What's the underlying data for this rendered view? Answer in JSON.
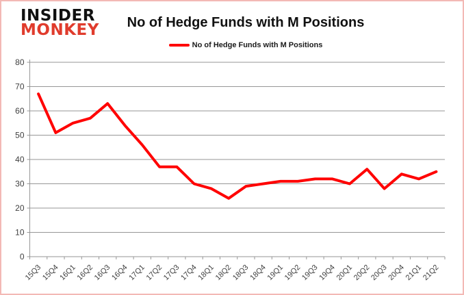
{
  "logo": {
    "top": "INSIDER",
    "bottom": "MONKEY"
  },
  "header": {
    "title": "No of Hedge Funds with M Positions"
  },
  "legend": {
    "label": "No of Hedge Funds with M Positions"
  },
  "colors": {
    "series": "#FF0000",
    "logo_black": "#111111",
    "logo_red": "#E03C2D",
    "grid": "#969696",
    "tick_text": "#3F3F3F",
    "border": "#F3B9B5"
  },
  "chart_data": {
    "type": "line",
    "title": "No of Hedge Funds with M Positions",
    "categories": [
      "15Q3",
      "15Q4",
      "16Q1",
      "16Q2",
      "16Q3",
      "16Q4",
      "17Q1",
      "17Q2",
      "17Q3",
      "17Q4",
      "18Q1",
      "18Q2",
      "18Q3",
      "18Q4",
      "19Q1",
      "19Q2",
      "19Q3",
      "19Q4",
      "20Q1",
      "20Q2",
      "20Q3",
      "20Q4",
      "21Q1",
      "21Q2"
    ],
    "series": [
      {
        "name": "No of Hedge Funds with M Positions",
        "color": "#FF0000",
        "values": [
          67,
          51,
          55,
          57,
          63,
          54,
          46,
          37,
          37,
          30,
          28,
          24,
          29,
          30,
          31,
          31,
          32,
          32,
          30,
          36,
          28,
          34,
          32,
          35
        ]
      }
    ],
    "xlabel": "",
    "ylabel": "",
    "ylim": [
      0,
      80
    ],
    "yticks": [
      0,
      10,
      20,
      30,
      40,
      50,
      60,
      70,
      80
    ],
    "grid": true,
    "legend_position": "top-center"
  }
}
